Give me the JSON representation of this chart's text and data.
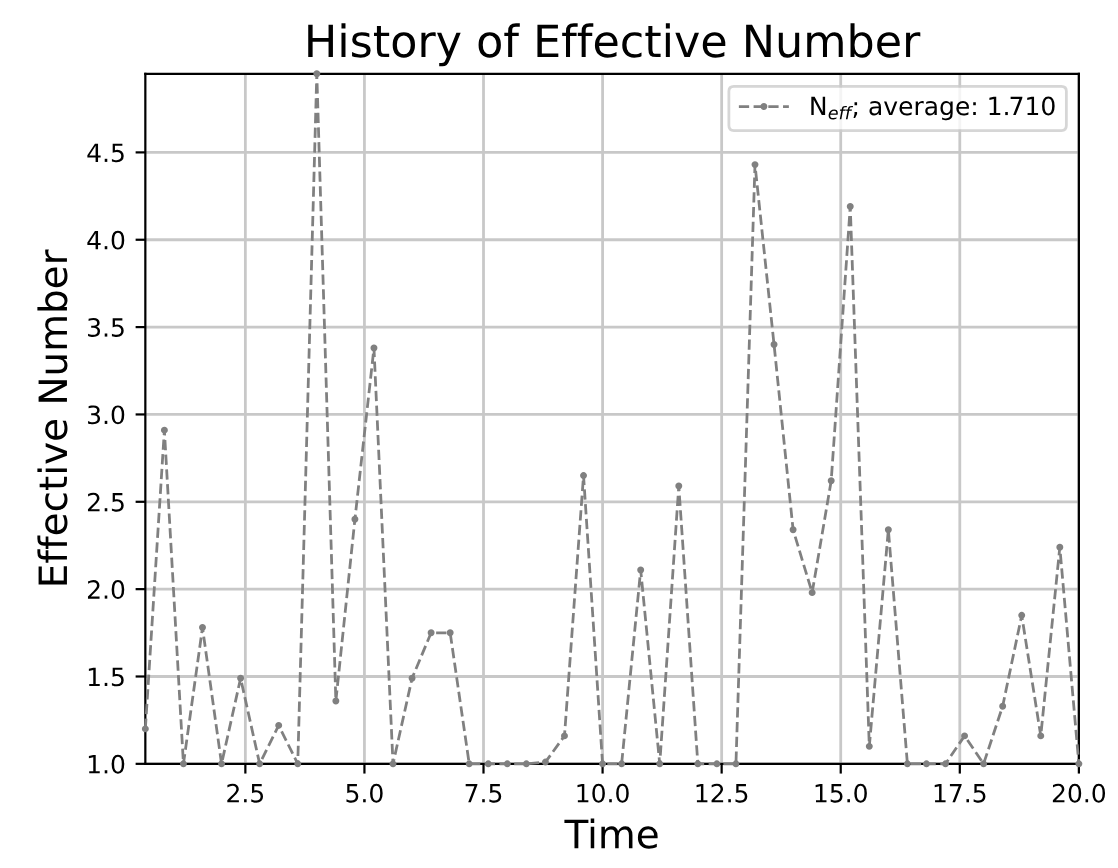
{
  "chart_data": {
    "type": "line",
    "title": "History of Effective Number",
    "xlabel": "Time",
    "ylabel": "Effective Number",
    "x": [
      0.4,
      0.8,
      1.2,
      1.6,
      2.0,
      2.4,
      2.8,
      3.2,
      3.6,
      4.0,
      4.4,
      4.8,
      5.2,
      5.6,
      6.0,
      6.4,
      6.8,
      7.2,
      7.6,
      8.0,
      8.4,
      8.8,
      9.2,
      9.6,
      10.0,
      10.4,
      10.8,
      11.2,
      11.6,
      12.0,
      12.4,
      12.8,
      13.2,
      13.6,
      14.0,
      14.4,
      14.8,
      15.2,
      15.6,
      16.0,
      16.4,
      16.8,
      17.2,
      17.6,
      18.0,
      18.4,
      18.8,
      19.2,
      19.6,
      20.0
    ],
    "series": [
      {
        "name": "N$_{eff}$; average: 1.710",
        "color": "#808080",
        "values": [
          1.2,
          2.91,
          1.0,
          1.78,
          1.0,
          1.49,
          1.0,
          1.22,
          1.0,
          4.95,
          1.36,
          2.4,
          3.38,
          1.0,
          1.49,
          1.75,
          1.75,
          1.0,
          1.0,
          1.0,
          1.0,
          1.01,
          1.16,
          2.65,
          1.0,
          1.0,
          2.11,
          1.0,
          2.59,
          1.0,
          1.0,
          1.0,
          4.43,
          3.4,
          2.34,
          1.98,
          2.62,
          4.19,
          1.1,
          2.34,
          1.0,
          1.0,
          1.0,
          1.16,
          1.0,
          1.33,
          1.85,
          1.16,
          2.24,
          1.0
        ]
      }
    ],
    "xlim": [
      0.4,
      20.0
    ],
    "ylim": [
      1.0,
      4.95
    ],
    "xticks": [
      {
        "value": 2.5,
        "label": "2.5"
      },
      {
        "value": 5,
        "label": "5.0"
      },
      {
        "value": 7.5,
        "label": "7.5"
      },
      {
        "value": 10,
        "label": "10.0"
      },
      {
        "value": 12.5,
        "label": "12.5"
      },
      {
        "value": 15,
        "label": "15.0"
      },
      {
        "value": 17.5,
        "label": "17.5"
      },
      {
        "value": 20,
        "label": "20.0"
      }
    ],
    "yticks": [
      {
        "value": 1,
        "label": "1.0"
      },
      {
        "value": 1.5,
        "label": "1.5"
      },
      {
        "value": 2,
        "label": "2.0"
      },
      {
        "value": 2.5,
        "label": "2.5"
      },
      {
        "value": 3,
        "label": "3.0"
      },
      {
        "value": 3.5,
        "label": "3.5"
      },
      {
        "value": 4,
        "label": "4.0"
      },
      {
        "value": 4.5,
        "label": "4.5"
      }
    ],
    "grid": true,
    "legend": "top right",
    "marker": "circle",
    "line_style": "dashed"
  }
}
